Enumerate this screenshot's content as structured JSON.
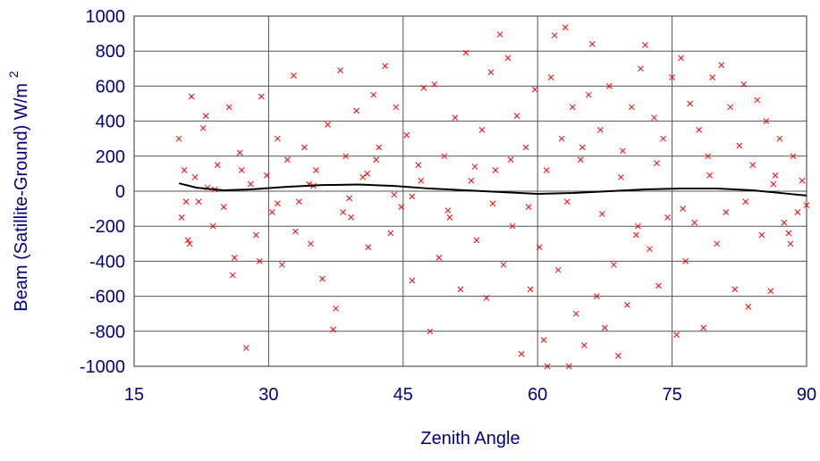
{
  "chart_data": {
    "type": "scatter",
    "xlabel": "Zenith Angle",
    "ylabel": {
      "text": "Beam (Satillite-Ground) W/m",
      "superscript": "2"
    },
    "xlim": [
      15,
      90
    ],
    "xticks": [
      15,
      30,
      45,
      60,
      75,
      90
    ],
    "ylim": [
      -1000,
      1000
    ],
    "yticks": [
      -1000,
      -800,
      -600,
      -400,
      -200,
      0,
      200,
      400,
      600,
      800,
      1000
    ],
    "grid": true,
    "series": [
      {
        "color": "#ff0000",
        "marker": "x",
        "x": [
          20,
          20.3,
          20.6,
          21,
          21.4,
          21.8,
          22.2,
          22.7,
          23.2,
          23.8,
          24.3,
          25,
          25.6,
          26.2,
          26.8,
          27.5,
          28,
          28.6,
          29.2,
          29.8,
          30.4,
          31,
          31.5,
          32.1,
          32.8,
          33.4,
          34,
          34.7,
          35.3,
          36,
          36.6,
          37.2,
          37.5,
          38,
          38.6,
          39.2,
          39.8,
          40.5,
          41.1,
          41.7,
          42.3,
          43,
          43.6,
          44.2,
          44.8,
          45.4,
          46,
          46.7,
          47.3,
          48,
          48.5,
          49,
          49.6,
          50.2,
          50.8,
          51.4,
          52,
          52.6,
          53.2,
          53.8,
          54.3,
          54.8,
          55.3,
          55.8,
          56.2,
          56.7,
          57.2,
          57.7,
          58.2,
          58.7,
          59.2,
          59.7,
          60.2,
          60.7,
          61.1,
          61.5,
          61.9,
          62.3,
          62.7,
          63.1,
          63.5,
          63.9,
          64.3,
          64.8,
          65.2,
          65.7,
          66.1,
          66.6,
          67,
          67.5,
          68,
          68.5,
          69,
          69.5,
          70,
          70.5,
          71,
          71.5,
          72,
          72.5,
          73,
          73.5,
          74,
          74.5,
          75,
          75.5,
          76,
          76.5,
          77,
          77.5,
          78,
          78.5,
          79,
          79.5,
          80,
          80.5,
          81,
          81.5,
          82,
          82.5,
          83,
          83.5,
          84,
          84.5,
          85,
          85.5,
          86,
          86.5,
          87,
          87.5,
          88,
          88.5,
          89,
          89.5,
          90,
          21.2,
          23,
          26,
          29,
          33,
          35,
          39,
          41,
          44,
          47,
          50,
          53,
          55,
          57,
          59,
          61,
          63.3,
          65,
          67.2,
          69.3,
          71.2,
          73.3,
          76.2,
          79.2,
          83.2,
          86.3,
          88.2,
          20.8,
          24,
          27,
          31,
          34.5,
          38.3,
          42,
          46
        ],
        "values": [
          300,
          -150,
          120,
          -280,
          540,
          80,
          -60,
          360,
          20,
          -200,
          150,
          -90,
          480,
          -380,
          220,
          -895,
          40,
          -250,
          540,
          90,
          -120,
          300,
          -420,
          180,
          660,
          -60,
          250,
          -300,
          120,
          -500,
          380,
          -790,
          -670,
          690,
          200,
          -150,
          460,
          80,
          -320,
          550,
          250,
          715,
          -240,
          480,
          -90,
          320,
          -510,
          150,
          590,
          -800,
          610,
          -380,
          200,
          -150,
          420,
          -560,
          790,
          60,
          -280,
          350,
          -610,
          680,
          120,
          895,
          -420,
          760,
          -200,
          430,
          -930,
          250,
          -560,
          580,
          -320,
          -850,
          -1000,
          650,
          890,
          -450,
          300,
          935,
          -1000,
          480,
          -700,
          180,
          -880,
          550,
          840,
          -600,
          350,
          -780,
          600,
          -420,
          -940,
          230,
          -650,
          480,
          -250,
          700,
          835,
          -330,
          420,
          -540,
          300,
          -150,
          650,
          -820,
          760,
          -400,
          500,
          -180,
          350,
          -780,
          200,
          650,
          -300,
          720,
          -120,
          480,
          -560,
          260,
          610,
          -660,
          150,
          520,
          -250,
          400,
          -570,
          90,
          300,
          -180,
          -240,
          200,
          -120,
          60,
          -80,
          -300,
          430,
          -480,
          -400,
          -230,
          30,
          -40,
          100,
          -20,
          60,
          -110,
          140,
          -70,
          180,
          -90,
          120,
          -60,
          250,
          -130,
          80,
          -200,
          160,
          -100,
          90,
          -60,
          40,
          -300,
          -60,
          10,
          120,
          -70,
          40,
          -120,
          180,
          -30
        ]
      },
      {
        "color": "#000000",
        "marker": "line",
        "x": [
          20,
          22,
          25,
          28,
          32,
          36,
          40,
          44,
          48,
          52,
          56,
          60,
          64,
          68,
          72,
          76,
          80,
          84,
          88,
          90
        ],
        "values": [
          45,
          20,
          5,
          10,
          25,
          35,
          38,
          30,
          15,
          5,
          -5,
          -15,
          -10,
          0,
          10,
          15,
          15,
          5,
          -15,
          -25
        ]
      }
    ]
  }
}
